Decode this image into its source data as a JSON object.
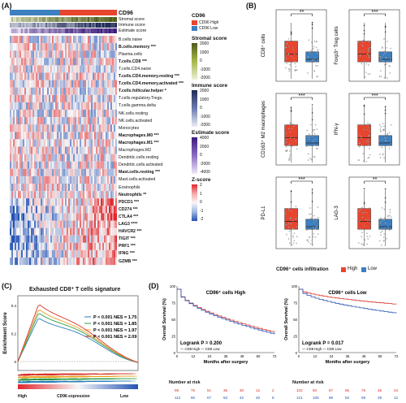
{
  "panelA": {
    "label": "(A)",
    "title": "CD96",
    "annot_rows": [
      "Stromal score",
      "Immune score",
      "Estimate score"
    ],
    "rows": [
      {
        "name": "B.cells.naive",
        "bold": false
      },
      {
        "name": "B.cells.memory ***",
        "bold": true
      },
      {
        "name": "Plasma.cells",
        "bold": false
      },
      {
        "name": "T.cells.CD8 ***",
        "bold": true
      },
      {
        "name": "T.cells.CD4.naive",
        "bold": false
      },
      {
        "name": "T.cells.CD4.memory.resting ***",
        "bold": true
      },
      {
        "name": "T.cells.CD4.memory.activated ***",
        "bold": true
      },
      {
        "name": "T.cells.follicular.helper *",
        "bold": true
      },
      {
        "name": "T.cells.regulatory.Tregs.",
        "bold": false
      },
      {
        "name": "T.cells.gamma.delta",
        "bold": false
      },
      {
        "name": "NK.cells.resting",
        "bold": false
      },
      {
        "name": "NK.cells.activated",
        "bold": false
      },
      {
        "name": "Monocytes",
        "bold": false
      },
      {
        "name": "Macrophages.M0 ***",
        "bold": true
      },
      {
        "name": "Macrophages.M1 ***",
        "bold": true
      },
      {
        "name": "Macrophages.M2",
        "bold": false
      },
      {
        "name": "Dendritic.cells.resting",
        "bold": false
      },
      {
        "name": "Dendritic.cells.activated",
        "bold": false
      },
      {
        "name": "Mast.cells.resting ***",
        "bold": true
      },
      {
        "name": "Mast.cells.activated",
        "bold": false
      },
      {
        "name": "Eosinophils",
        "bold": false
      },
      {
        "name": "Neutrophils **",
        "bold": true
      },
      {
        "name": "PDCD1 ***",
        "bold": true
      },
      {
        "name": "CD274 ***",
        "bold": true
      },
      {
        "name": "CTLA4 ***",
        "bold": true
      },
      {
        "name": "LAG3 ****",
        "bold": true
      },
      {
        "name": "HAVCR2 ***",
        "bold": true
      },
      {
        "name": "TIGIT ***",
        "bold": true
      },
      {
        "name": "PRF1 ***",
        "bold": true
      },
      {
        "name": "IFNG ***",
        "bold": true
      },
      {
        "name": "GZMB ***",
        "bold": true
      }
    ],
    "legend": {
      "cd96_title": "CD96",
      "cd96_high": "CD96 High",
      "cd96_low": "CD96 Low",
      "high_color": "#e8452f",
      "low_color": "#3d7fbf",
      "stromal_title": "Stromal score",
      "stromal_ticks": [
        "2000",
        "1000",
        "0",
        "-1000",
        "-2000"
      ],
      "immune_title": "Immune score",
      "immune_ticks": [
        "2000",
        "1000",
        "0",
        "-1000",
        "-2000"
      ],
      "estimate_title": "Estimate score",
      "estimate_ticks": [
        "4000",
        "2000",
        "0",
        "-2000",
        "-4000"
      ],
      "z_title": "Z-score",
      "z_ticks": [
        "2",
        "1",
        "0",
        "-1",
        "-2"
      ]
    }
  },
  "panelB": {
    "label": "(B)",
    "plots": [
      {
        "ylabel": "CD8⁺ cells",
        "sig": "**"
      },
      {
        "ylabel": "Foxp3⁺ Treg cells",
        "sig": "***"
      },
      {
        "ylabel": "CD163⁺ M2 macrophages",
        "sig": "***"
      },
      {
        "ylabel": "IFN-γ",
        "sig": "***"
      },
      {
        "ylabel": "PD-L1",
        "sig": "***"
      },
      {
        "ylabel": "LAG-3",
        "sig": "**"
      }
    ],
    "legend_title": "CD96⁺ cells infiltration",
    "legend_high": "High",
    "legend_low": "Low"
  },
  "panelC": {
    "label": "(C)",
    "title": "Exhausted CD8⁺ T cells signature",
    "ylabel": "Enrichment Score",
    "xlabel": "CD96 expression",
    "x_high": "High",
    "x_low": "Low",
    "yticks": [
      "0.4",
      "0.2",
      "0"
    ],
    "stats": [
      {
        "text": "P < 0.001 NES = 1.75",
        "color": "#2d7fb8"
      },
      {
        "text": "P < 0.001 NES = 1.85",
        "color": "#2f9e44"
      },
      {
        "text": "P < 0.001 NES = 1.97",
        "color": "#e8a020"
      },
      {
        "text": "P < 0.001 NES = 2.09",
        "color": "#d73027"
      }
    ]
  },
  "panelD": {
    "label": "(D)",
    "ylabel": "Overall Survival (%)",
    "xlabel": "Months after surgery",
    "yticks": [
      "100",
      "75",
      "50",
      "25",
      "0"
    ],
    "xticks": [
      "0",
      "12",
      "24",
      "36",
      "48",
      "60",
      "72"
    ],
    "risk_title": "Number at risk",
    "plots": [
      {
        "title": "CD96⁺ cells High",
        "pvalue": "Logrank P = 0.200",
        "legend": "— CD8 High — CD8 Low",
        "risk_high": [
          "99",
          "75",
          "51",
          "36",
          "30",
          "12",
          "2"
        ],
        "risk_low": [
          "112",
          "80",
          "67",
          "53",
          "42",
          "20",
          "8"
        ]
      },
      {
        "title": "CD96⁺ cells Low",
        "pvalue": "Logrank P = 0.017",
        "legend": "— CD8 High — CD8 Low",
        "risk_high": [
          "102",
          "93",
          "87",
          "85",
          "79",
          "45",
          "24"
        ],
        "risk_low": [
          "121",
          "106",
          "88",
          "82",
          "69",
          "29",
          "12"
        ]
      }
    ]
  }
}
